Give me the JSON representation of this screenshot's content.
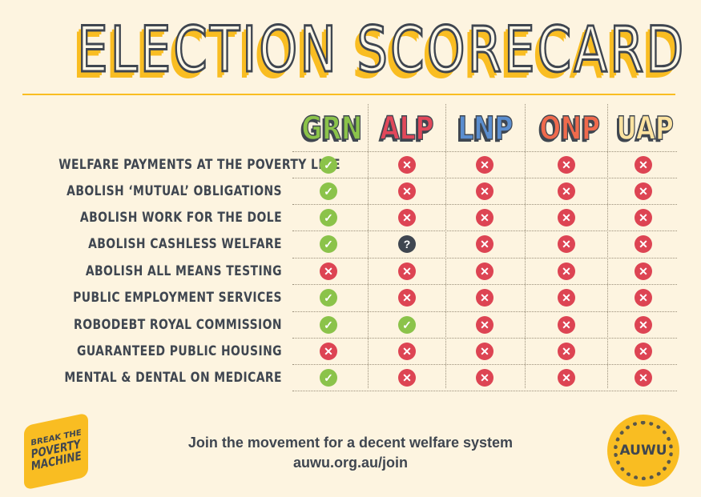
{
  "title": "ELECTION SCORECARD",
  "parties": [
    {
      "name": "GRN",
      "color": "#8bc34a"
    },
    {
      "name": "ALP",
      "color": "#e2485a"
    },
    {
      "name": "LNP",
      "color": "#5b8ecf"
    },
    {
      "name": "ONP",
      "color": "#f06a4c"
    },
    {
      "name": "UAP",
      "color": "#fde3a0"
    }
  ],
  "legend": {
    "G": "supports",
    "X": "does not support",
    "Q": "unclear"
  },
  "rows": [
    {
      "policy": "WELFARE PAYMENTS AT THE POVERTY LINE",
      "scores": [
        "G",
        "X",
        "X",
        "X",
        "X"
      ]
    },
    {
      "policy": "ABOLISH ‘MUTUAL’ OBLIGATIONS",
      "scores": [
        "G",
        "X",
        "X",
        "X",
        "X"
      ]
    },
    {
      "policy": "ABOLISH WORK FOR THE DOLE",
      "scores": [
        "G",
        "X",
        "X",
        "X",
        "X"
      ]
    },
    {
      "policy": "ABOLISH CASHLESS WELFARE",
      "scores": [
        "G",
        "Q",
        "X",
        "X",
        "X"
      ]
    },
    {
      "policy": "ABOLISH ALL MEANS TESTING",
      "scores": [
        "X",
        "X",
        "X",
        "X",
        "X"
      ]
    },
    {
      "policy": "PUBLIC EMPLOYMENT SERVICES",
      "scores": [
        "G",
        "X",
        "X",
        "X",
        "X"
      ]
    },
    {
      "policy": "ROBODEBT ROYAL COMMISSION",
      "scores": [
        "G",
        "G",
        "X",
        "X",
        "X"
      ]
    },
    {
      "policy": "GUARANTEED PUBLIC HOUSING",
      "scores": [
        "X",
        "X",
        "X",
        "X",
        "X"
      ]
    },
    {
      "policy": "MENTAL & DENTAL ON MEDICARE",
      "scores": [
        "G",
        "X",
        "X",
        "X",
        "X"
      ]
    }
  ],
  "footer": {
    "line1": "Join the movement for a decent welfare system",
    "line2": "auwu.org.au/join"
  },
  "logos": {
    "bpm": {
      "small": "BREAK THE",
      "line2": "POVERTY",
      "line3": "MACHINE"
    },
    "auwu": {
      "name": "AUWU",
      "ring": "AUSTRALIAN UNEMPLOYED WORKERS' UNION"
    }
  }
}
